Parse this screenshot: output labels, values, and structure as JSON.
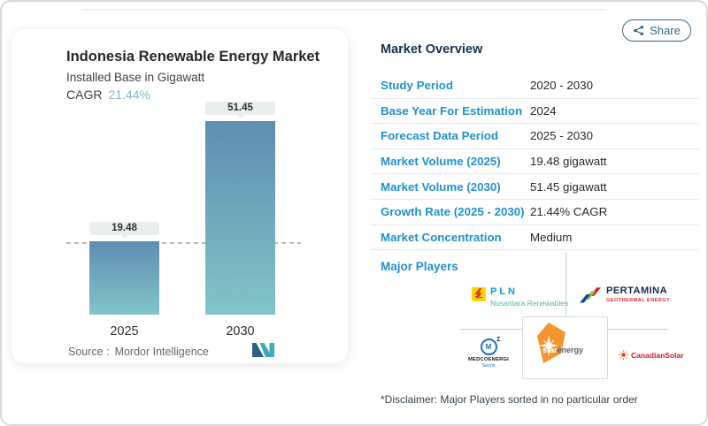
{
  "header": {
    "share_label": "Share"
  },
  "chart": {
    "title": "Indonesia Renewable Energy Market",
    "subtitle": "Installed Base in Gigawatt",
    "cagr_label": "CAGR",
    "cagr_value": "21.44%",
    "source_label": "Source :",
    "source_name": "Mordor Intelligence"
  },
  "chart_data": {
    "type": "bar",
    "categories": [
      "2025",
      "2030"
    ],
    "values": [
      19.48,
      51.45
    ],
    "data_labels": [
      "19.48",
      "51.45"
    ],
    "title": "Indonesia Renewable Energy Market",
    "subtitle": "Installed Base in Gigawatt",
    "ylabel": "Gigawatt",
    "ylim": [
      0,
      55
    ],
    "grid": false,
    "annotations": {
      "cagr": "21.44%",
      "dashed_reference_line_at": 19.48
    },
    "bar_gradient": [
      "#5e8db0",
      "#82c5ca"
    ]
  },
  "overview": {
    "heading": "Market Overview",
    "rows": [
      {
        "label": "Study Period",
        "value": "2020 - 2030"
      },
      {
        "label": "Base Year For Estimation",
        "value": "2024"
      },
      {
        "label": "Forecast Data Period",
        "value": "2025 - 2030"
      },
      {
        "label": "Market Volume (2025)",
        "value": "19.48 gigawatt"
      },
      {
        "label": "Market Volume (2030)",
        "value": "51.45 gigawatt"
      },
      {
        "label": "Growth Rate (2025 - 2030)",
        "value": "21.44% CAGR"
      },
      {
        "label": "Market Concentration",
        "value": "Medium"
      }
    ]
  },
  "players": {
    "heading": "Major Players",
    "disclaimer": "*Disclaimer: Major Players sorted in no particular order",
    "pln": {
      "name": "PLN",
      "subtitle": "Nusantara Renewables"
    },
    "pertamina": {
      "name": "PERTAMINA",
      "subtitle": "GEOTHERMAL ENERGY"
    },
    "medco": {
      "monogram": "M",
      "sup": "Σ",
      "name": "MEDCOENERGI",
      "subtitle": "Servis"
    },
    "star": {
      "word1": "star",
      "word2": "energy"
    },
    "canadian": {
      "name": "CanadianSolar"
    }
  },
  "colors": {
    "accent_blue": "#2191c9",
    "cagr_blue": "#85b4d3",
    "heading_navy": "#16324a",
    "share_teal": "#38678a",
    "bar_top": "#5e8db0",
    "bar_bottom": "#82c5ca",
    "pill_bg": "#e9efec"
  }
}
